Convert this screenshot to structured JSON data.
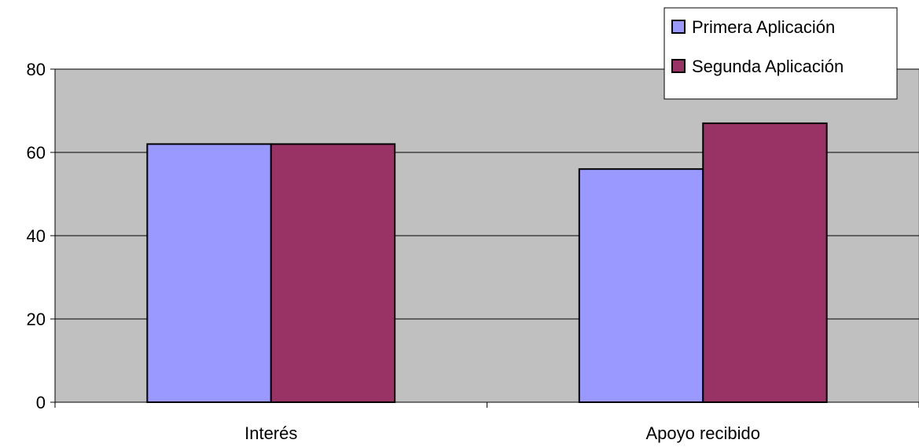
{
  "chart_data": {
    "type": "bar",
    "title": "",
    "xlabel": "",
    "ylabel": "",
    "categories": [
      "Interés",
      "Apoyo recibido"
    ],
    "series": [
      {
        "name": "Primera Aplicación",
        "values": [
          62,
          56
        ],
        "color": "#9999ff"
      },
      {
        "name": "Segunda Aplicación",
        "values": [
          62,
          67
        ],
        "color": "#993366"
      }
    ],
    "ylim": [
      0,
      80
    ],
    "yticks": [
      0,
      20,
      40,
      60,
      80
    ],
    "grid": true,
    "legend": "top-right",
    "plot_background": "#c0c0c0"
  }
}
